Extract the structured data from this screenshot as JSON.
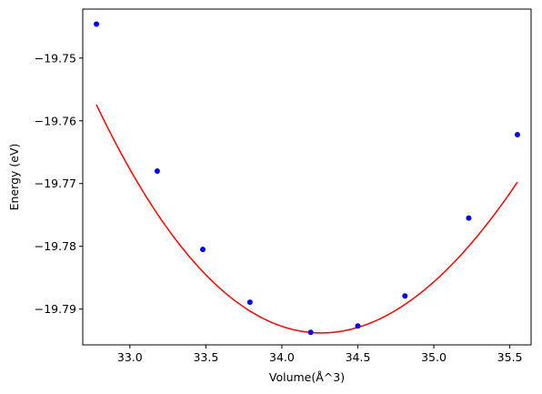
{
  "chart_data": {
    "type": "line",
    "xlabel": "Volume(Å^3)",
    "ylabel": "Energy (eV)",
    "xlim": [
      32.69,
      35.64
    ],
    "ylim": [
      -19.7957,
      -19.7422
    ],
    "xticks": [
      33.0,
      33.5,
      34.0,
      34.5,
      35.0,
      35.5
    ],
    "xtick_labels": [
      "33.0",
      "33.5",
      "34.0",
      "34.5",
      "35.0",
      "35.5"
    ],
    "yticks": [
      -19.75,
      -19.76,
      -19.77,
      -19.78,
      -19.79
    ],
    "ytick_labels": [
      "−19.75",
      "−19.76",
      "−19.77",
      "−19.78",
      "−19.79"
    ],
    "grid": false,
    "series": [
      {
        "kind": "points",
        "color": "#0000ff",
        "x": [
          32.78,
          33.18,
          33.48,
          33.79,
          34.19,
          34.5,
          34.81,
          35.23,
          35.55
        ],
        "y": [
          -19.7446,
          -19.768,
          -19.7805,
          -19.7889,
          -19.7937,
          -19.7927,
          -19.7879,
          -19.7755,
          -19.7622
        ]
      },
      {
        "kind": "fit",
        "color": "#ff0000",
        "x_start": 32.78,
        "x_end": 35.55,
        "min_x": 34.26,
        "min_y": -19.7938,
        "curvature": 0.01545,
        "cubic": -0.00078
      }
    ]
  }
}
